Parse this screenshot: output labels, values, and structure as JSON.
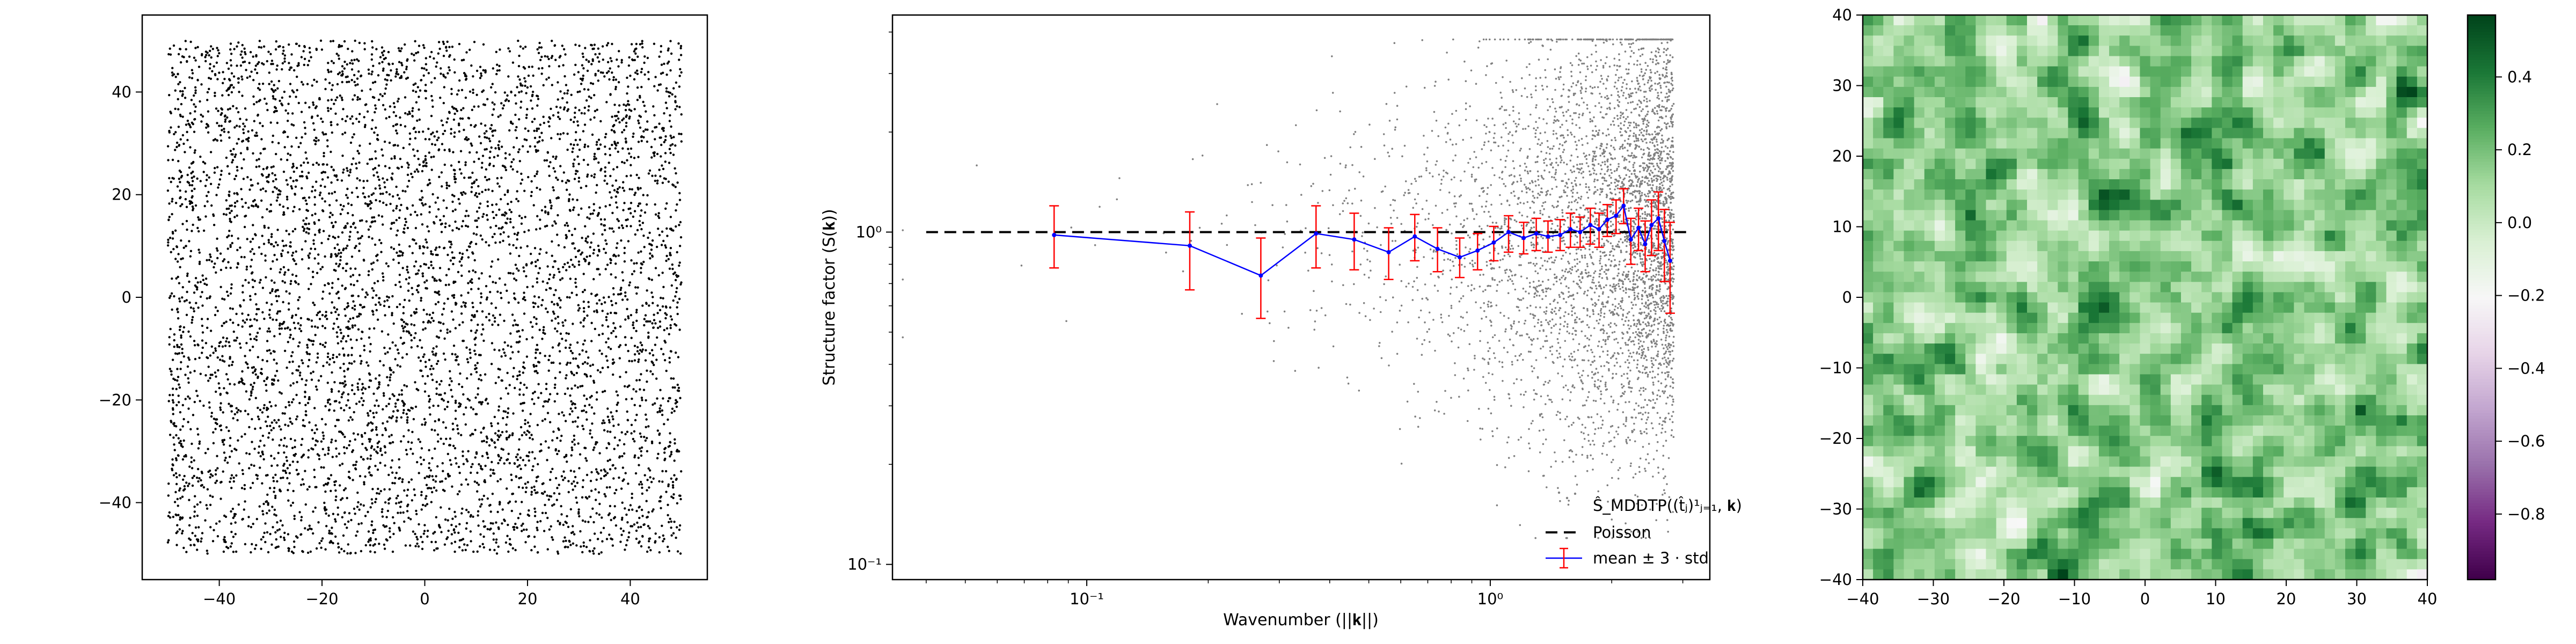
{
  "chart_data": [
    {
      "type": "scatter",
      "title": "",
      "xlabel": "",
      "ylabel": "",
      "xlim": [
        -55,
        55
      ],
      "ylim": [
        -55,
        55
      ],
      "xticks": [
        -40,
        -20,
        0,
        20,
        40
      ],
      "yticks": [
        -40,
        -20,
        0,
        20,
        40
      ],
      "xtick_labels": [
        "−40",
        "−20",
        "0",
        "20",
        "40"
      ],
      "ytick_labels": [
        "−40",
        "−20",
        "0",
        "20",
        "40"
      ],
      "point_region": {
        "x": [
          -50,
          50
        ],
        "y": [
          -50,
          50
        ]
      },
      "point_count": 6000,
      "point_color": "#000000",
      "grid": false
    },
    {
      "type": "scatter",
      "title": "",
      "xlabel": "Wavenumber (||𝐤||)",
      "ylabel": "Structure factor (S(𝐤))",
      "xscale": "log",
      "yscale": "log",
      "xlim": [
        0.033,
        3.5
      ],
      "ylim": [
        0.09,
        4.5
      ],
      "xticks": [
        0.1,
        1
      ],
      "yticks": [
        0.1,
        1
      ],
      "xtick_labels": [
        "10⁻¹",
        "10⁰"
      ],
      "ytick_labels": [
        "10⁻¹",
        "10⁰"
      ],
      "grid": false,
      "legend": {
        "position": "lower-right",
        "entries": [
          {
            "label": "Ŝ_MDDTP((t̂ⱼ)¹ⱼ₌₁, 𝐤)",
            "style": "gray-dots",
            "color": "#808080"
          },
          {
            "label": "Poisson",
            "style": "dashed-line",
            "color": "#000000"
          },
          {
            "label": "mean ± 3 · std",
            "style": "line-errorbar",
            "color": "#0000ff",
            "err_color": "#ff0000"
          }
        ]
      },
      "poisson_level": 1.0,
      "binned_mean": {
        "k": [
          0.083,
          0.18,
          0.27,
          0.37,
          0.46,
          0.56,
          0.65,
          0.74,
          0.84,
          0.93,
          1.02,
          1.11,
          1.21,
          1.3,
          1.39,
          1.49,
          1.58,
          1.67,
          1.77,
          1.86,
          1.95,
          2.05,
          2.14,
          2.23,
          2.33,
          2.42,
          2.51,
          2.61,
          2.7,
          2.79
        ],
        "mean": [
          0.98,
          0.91,
          0.74,
          0.99,
          0.95,
          0.87,
          0.97,
          0.89,
          0.84,
          0.88,
          0.93,
          1.0,
          0.96,
          0.99,
          0.97,
          0.98,
          1.02,
          1.0,
          1.05,
          1.02,
          1.09,
          1.12,
          1.2,
          0.95,
          1.03,
          0.92,
          1.05,
          1.1,
          0.94,
          0.82
        ],
        "err_lo": [
          0.78,
          0.67,
          0.55,
          0.78,
          0.77,
          0.72,
          0.82,
          0.76,
          0.73,
          0.77,
          0.82,
          0.87,
          0.86,
          0.88,
          0.87,
          0.88,
          0.9,
          0.9,
          0.92,
          0.9,
          0.97,
          0.99,
          1.06,
          0.8,
          0.88,
          0.76,
          0.85,
          0.88,
          0.71,
          0.57
        ],
        "err_hi": [
          1.2,
          1.15,
          0.96,
          1.2,
          1.14,
          1.03,
          1.13,
          1.03,
          0.96,
          0.99,
          1.04,
          1.12,
          1.07,
          1.1,
          1.08,
          1.09,
          1.14,
          1.11,
          1.18,
          1.14,
          1.21,
          1.25,
          1.35,
          1.1,
          1.18,
          1.08,
          1.25,
          1.32,
          1.17,
          1.07
        ],
        "line_color": "#0000ff",
        "err_color": "#ff0000"
      },
      "scatter_estimate": {
        "point_count": 4200,
        "k_range": [
          0.035,
          2.85
        ],
        "y_range": [
          0.12,
          3.8
        ],
        "color": "#808080"
      }
    },
    {
      "type": "heatmap",
      "title": "",
      "xlabel": "",
      "ylabel": "",
      "xlim": [
        -40,
        40
      ],
      "ylim": [
        -40,
        40
      ],
      "xticks": [
        -40,
        -30,
        -20,
        -10,
        0,
        10,
        20,
        30,
        40
      ],
      "yticks": [
        -40,
        -30,
        -20,
        -10,
        0,
        10,
        20,
        30,
        40
      ],
      "xtick_labels": [
        "−40",
        "−30",
        "−20",
        "−10",
        "0",
        "10",
        "20",
        "30",
        "40"
      ],
      "ytick_labels": [
        "−40",
        "−30",
        "−20",
        "−10",
        "0",
        "10",
        "20",
        "30",
        "40"
      ],
      "colormap": "PRGn",
      "value_range": [
        -0.98,
        0.57
      ],
      "colorbar": {
        "position": "right",
        "ticks": [
          0.4,
          0.2,
          0.0,
          -0.2,
          -0.4,
          -0.6,
          -0.8
        ],
        "tick_labels": [
          "0.4",
          "0.2",
          "0.0",
          "−0.2",
          "−0.4",
          "−0.6",
          "−0.8"
        ]
      },
      "grid_resolution": [
        55,
        55
      ]
    }
  ]
}
